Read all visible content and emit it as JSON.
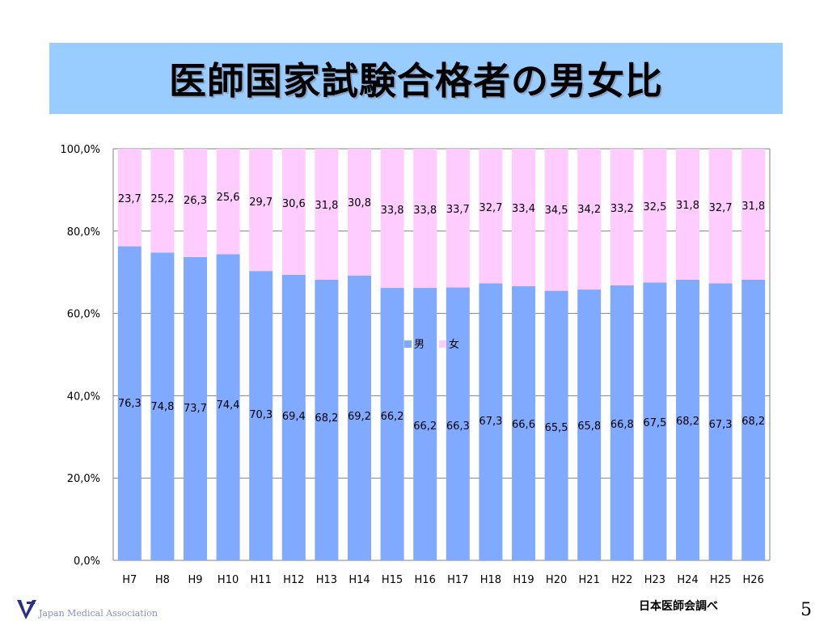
{
  "title": "医師国家試験合格者の男女比",
  "source": "日本医師会調べ",
  "page_number": "5",
  "logo_text": "Japan Medical Association",
  "colors": {
    "male": "#80aaff",
    "female": "#ffccff",
    "title_bg": "#99ccff",
    "grid": "#808080"
  },
  "chart_data": {
    "type": "bar",
    "stacked": true,
    "categories": [
      "H7",
      "H8",
      "H9",
      "H10",
      "H11",
      "H12",
      "H13",
      "H14",
      "H15",
      "H16",
      "H17",
      "H18",
      "H19",
      "H20",
      "H21",
      "H22",
      "H23",
      "H24",
      "H25",
      "H26"
    ],
    "series": [
      {
        "name": "男",
        "values": [
          76.3,
          74.8,
          73.7,
          74.4,
          70.3,
          69.4,
          68.2,
          69.2,
          66.2,
          66.2,
          66.3,
          67.3,
          66.6,
          65.5,
          65.8,
          66.8,
          67.5,
          68.2,
          67.3,
          68.2
        ],
        "labels": [
          "76,3",
          "74,8",
          "73,7",
          "74,4",
          "70,3",
          "69,4",
          "68,2",
          "69,2",
          "66,2",
          "66,2",
          "66,3",
          "67,3",
          "66,6",
          "65,5",
          "65,8",
          "66,8",
          "67,5",
          "68,2",
          "67,3",
          "68,2"
        ]
      },
      {
        "name": "女",
        "values": [
          23.7,
          25.2,
          26.3,
          25.6,
          29.7,
          30.6,
          31.8,
          30.8,
          33.8,
          33.8,
          33.7,
          32.7,
          33.4,
          34.5,
          34.2,
          33.2,
          32.5,
          31.8,
          32.7,
          31.8
        ],
        "labels": [
          "23,7",
          "25,2",
          "26,3",
          "25,6",
          "29,7",
          "30,6",
          "31,8",
          "30,8",
          "33,8",
          "33,8",
          "33,7",
          "32,7",
          "33,4",
          "34,5",
          "34,2",
          "33,2",
          "32,5",
          "31,8",
          "32,7",
          "31,8"
        ]
      }
    ],
    "y_ticks": [
      "0,0%",
      "20,0%",
      "40,0%",
      "60,0%",
      "80,0%",
      "100,0%"
    ],
    "ylim": [
      0,
      100
    ],
    "grid": true,
    "legend_position": "center"
  }
}
